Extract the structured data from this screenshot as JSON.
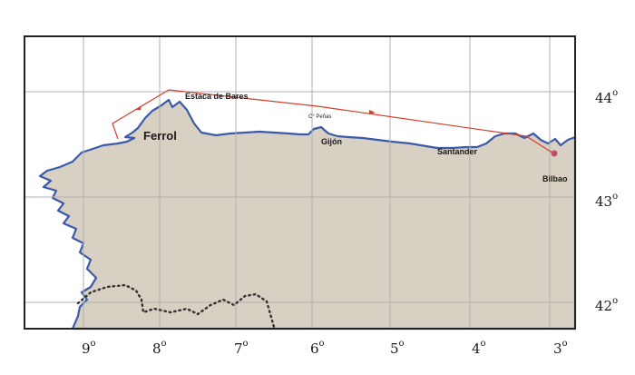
{
  "map": {
    "places": {
      "estaca": "Estaca de Bares",
      "penas": "C° Peñas",
      "ferrol": "Ferrol",
      "gijon": "Gijón",
      "santander": "Santander",
      "bilbao": "Bilbao"
    },
    "latitudes": {
      "lat44": "44",
      "lat43": "43",
      "lat42": "42"
    },
    "longitudes": [
      "9",
      "8",
      "7",
      "6",
      "5",
      "4",
      "3"
    ],
    "degree_symbol": "o",
    "colors": {
      "land": "#d8d0c3",
      "sea": "#ffffff",
      "coast": "#3a5aa8",
      "route": "#d0402a",
      "grid": "#b0b0b0",
      "frame": "#222222",
      "border": "#333333"
    }
  }
}
